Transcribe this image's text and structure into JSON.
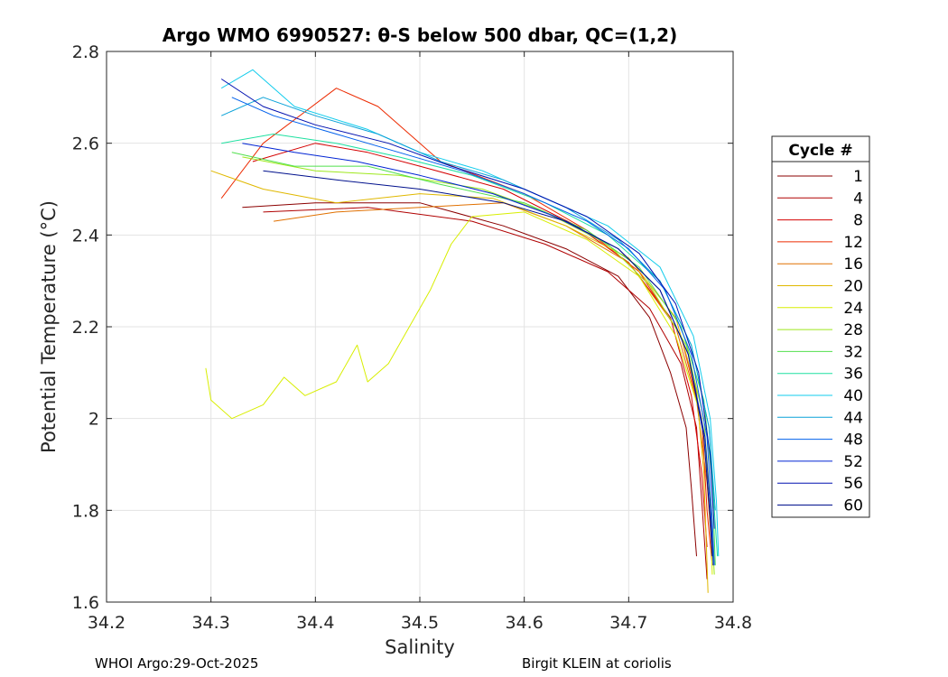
{
  "chart_data": {
    "type": "line",
    "title": "Argo WMO 6990527: θ-S below 500 dbar,  QC=(1,2)",
    "xlabel": "Salinity",
    "ylabel": "Potential Temperature (°C)",
    "xlim": [
      34.2,
      34.8
    ],
    "ylim": [
      1.6,
      2.8
    ],
    "xticks": [
      34.2,
      34.3,
      34.4,
      34.5,
      34.6,
      34.7,
      34.8
    ],
    "xtick_labels": [
      "34.2",
      "34.3",
      "34.4",
      "34.5",
      "34.6",
      "34.7",
      "34.8"
    ],
    "yticks": [
      1.6,
      1.8,
      2.0,
      2.2,
      2.4,
      2.6,
      2.8
    ],
    "ytick_labels": [
      "1.6",
      "1.8",
      "2",
      "2.2",
      "2.4",
      "2.6",
      "2.8"
    ],
    "grid": true,
    "legend": {
      "title": "Cycle #",
      "placement": "right",
      "entries": [
        {
          "label": "1",
          "color": "#8b0000"
        },
        {
          "label": "4",
          "color": "#b00000"
        },
        {
          "label": "8",
          "color": "#d40000"
        },
        {
          "label": "12",
          "color": "#ec2a00"
        },
        {
          "label": "16",
          "color": "#e07000"
        },
        {
          "label": "20",
          "color": "#e0b800"
        },
        {
          "label": "24",
          "color": "#d8ee00"
        },
        {
          "label": "28",
          "color": "#9ee81c"
        },
        {
          "label": "32",
          "color": "#52e04e"
        },
        {
          "label": "36",
          "color": "#1ee0a0"
        },
        {
          "label": "40",
          "color": "#12ccec"
        },
        {
          "label": "44",
          "color": "#0aa2d8"
        },
        {
          "label": "48",
          "color": "#0060ec"
        },
        {
          "label": "52",
          "color": "#0024d4"
        },
        {
          "label": "56",
          "color": "#0010b0"
        },
        {
          "label": "60",
          "color": "#00108c"
        }
      ]
    },
    "series": [
      {
        "name": "1",
        "color": "#8b0000",
        "points": [
          [
            34.33,
            2.46
          ],
          [
            34.4,
            2.47
          ],
          [
            34.5,
            2.47
          ],
          [
            34.58,
            2.42
          ],
          [
            34.64,
            2.37
          ],
          [
            34.69,
            2.31
          ],
          [
            34.72,
            2.22
          ],
          [
            34.74,
            2.1
          ],
          [
            34.755,
            1.98
          ],
          [
            34.76,
            1.85
          ],
          [
            34.765,
            1.7
          ]
        ]
      },
      {
        "name": "4",
        "color": "#b00000",
        "points": [
          [
            34.35,
            2.45
          ],
          [
            34.45,
            2.46
          ],
          [
            34.55,
            2.43
          ],
          [
            34.62,
            2.38
          ],
          [
            34.68,
            2.32
          ],
          [
            34.72,
            2.24
          ],
          [
            34.75,
            2.12
          ],
          [
            34.765,
            1.98
          ],
          [
            34.77,
            1.82
          ],
          [
            34.775,
            1.65
          ]
        ]
      },
      {
        "name": "8",
        "color": "#d40000",
        "points": [
          [
            34.34,
            2.56
          ],
          [
            34.4,
            2.6
          ],
          [
            34.45,
            2.58
          ],
          [
            34.5,
            2.55
          ],
          [
            34.58,
            2.5
          ],
          [
            34.65,
            2.42
          ],
          [
            34.7,
            2.34
          ],
          [
            34.74,
            2.22
          ],
          [
            34.76,
            2.05
          ],
          [
            34.77,
            1.88
          ],
          [
            34.775,
            1.72
          ]
        ]
      },
      {
        "name": "12",
        "color": "#ec2a00",
        "points": [
          [
            34.31,
            2.48
          ],
          [
            34.35,
            2.6
          ],
          [
            34.42,
            2.72
          ],
          [
            34.46,
            2.68
          ],
          [
            34.52,
            2.56
          ],
          [
            34.6,
            2.49
          ],
          [
            34.66,
            2.41
          ],
          [
            34.71,
            2.32
          ],
          [
            34.75,
            2.18
          ],
          [
            34.77,
            2.0
          ],
          [
            34.775,
            1.8
          ],
          [
            34.78,
            1.68
          ]
        ]
      },
      {
        "name": "16",
        "color": "#e07000",
        "points": [
          [
            34.36,
            2.43
          ],
          [
            34.42,
            2.45
          ],
          [
            34.5,
            2.46
          ],
          [
            34.58,
            2.47
          ],
          [
            34.64,
            2.42
          ],
          [
            34.7,
            2.34
          ],
          [
            34.745,
            2.2
          ],
          [
            34.765,
            2.04
          ],
          [
            34.775,
            1.86
          ],
          [
            34.78,
            1.7
          ]
        ]
      },
      {
        "name": "20",
        "color": "#e0b800",
        "points": [
          [
            34.3,
            2.54
          ],
          [
            34.35,
            2.5
          ],
          [
            34.42,
            2.47
          ],
          [
            34.5,
            2.49
          ],
          [
            34.57,
            2.48
          ],
          [
            34.64,
            2.42
          ],
          [
            34.7,
            2.35
          ],
          [
            34.745,
            2.22
          ],
          [
            34.765,
            2.06
          ],
          [
            34.772,
            1.88
          ],
          [
            34.776,
            1.62
          ]
        ]
      },
      {
        "name": "24",
        "color": "#d8ee00",
        "points": [
          [
            34.295,
            2.11
          ],
          [
            34.3,
            2.04
          ],
          [
            34.32,
            2.0
          ],
          [
            34.35,
            2.03
          ],
          [
            34.37,
            2.09
          ],
          [
            34.39,
            2.05
          ],
          [
            34.42,
            2.08
          ],
          [
            34.44,
            2.16
          ],
          [
            34.45,
            2.08
          ],
          [
            34.47,
            2.12
          ],
          [
            34.49,
            2.2
          ],
          [
            34.51,
            2.28
          ],
          [
            34.53,
            2.38
          ],
          [
            34.55,
            2.44
          ],
          [
            34.6,
            2.45
          ],
          [
            34.66,
            2.39
          ],
          [
            34.71,
            2.31
          ],
          [
            34.745,
            2.18
          ],
          [
            34.77,
            2.0
          ],
          [
            34.778,
            1.82
          ],
          [
            34.78,
            1.66
          ]
        ]
      },
      {
        "name": "28",
        "color": "#9ee81c",
        "points": [
          [
            34.33,
            2.57
          ],
          [
            34.4,
            2.54
          ],
          [
            34.48,
            2.53
          ],
          [
            34.56,
            2.5
          ],
          [
            34.62,
            2.45
          ],
          [
            34.68,
            2.38
          ],
          [
            34.72,
            2.29
          ],
          [
            34.755,
            2.16
          ],
          [
            34.772,
            2.0
          ],
          [
            34.778,
            1.82
          ],
          [
            34.782,
            1.66
          ]
        ]
      },
      {
        "name": "32",
        "color": "#52e04e",
        "points": [
          [
            34.32,
            2.58
          ],
          [
            34.38,
            2.55
          ],
          [
            34.45,
            2.55
          ],
          [
            34.52,
            2.51
          ],
          [
            34.6,
            2.47
          ],
          [
            34.66,
            2.41
          ],
          [
            34.71,
            2.33
          ],
          [
            34.75,
            2.2
          ],
          [
            34.772,
            2.04
          ],
          [
            34.78,
            1.86
          ],
          [
            34.783,
            1.68
          ]
        ]
      },
      {
        "name": "36",
        "color": "#1ee0a0",
        "points": [
          [
            34.31,
            2.6
          ],
          [
            34.36,
            2.62
          ],
          [
            34.42,
            2.6
          ],
          [
            34.48,
            2.57
          ],
          [
            34.55,
            2.53
          ],
          [
            34.62,
            2.47
          ],
          [
            34.68,
            2.4
          ],
          [
            34.73,
            2.3
          ],
          [
            34.76,
            2.16
          ],
          [
            34.777,
            1.98
          ],
          [
            34.782,
            1.8
          ],
          [
            34.785,
            1.7
          ]
        ]
      },
      {
        "name": "40",
        "color": "#12ccec",
        "points": [
          [
            34.31,
            2.72
          ],
          [
            34.34,
            2.76
          ],
          [
            34.38,
            2.68
          ],
          [
            34.45,
            2.63
          ],
          [
            34.5,
            2.58
          ],
          [
            34.56,
            2.54
          ],
          [
            34.62,
            2.48
          ],
          [
            34.68,
            2.42
          ],
          [
            34.73,
            2.33
          ],
          [
            34.762,
            2.18
          ],
          [
            34.778,
            2.0
          ],
          [
            34.784,
            1.82
          ],
          [
            34.786,
            1.7
          ]
        ]
      },
      {
        "name": "44",
        "color": "#0aa2d8",
        "points": [
          [
            34.31,
            2.66
          ],
          [
            34.35,
            2.7
          ],
          [
            34.4,
            2.66
          ],
          [
            34.46,
            2.62
          ],
          [
            34.52,
            2.56
          ],
          [
            34.58,
            2.52
          ],
          [
            34.64,
            2.46
          ],
          [
            34.69,
            2.39
          ],
          [
            34.73,
            2.3
          ],
          [
            34.76,
            2.16
          ],
          [
            34.777,
            1.98
          ],
          [
            34.783,
            1.8
          ]
        ]
      },
      {
        "name": "48",
        "color": "#0060ec",
        "points": [
          [
            34.32,
            2.7
          ],
          [
            34.36,
            2.66
          ],
          [
            34.42,
            2.62
          ],
          [
            34.48,
            2.58
          ],
          [
            34.54,
            2.54
          ],
          [
            34.6,
            2.49
          ],
          [
            34.66,
            2.43
          ],
          [
            34.7,
            2.37
          ],
          [
            34.735,
            2.28
          ],
          [
            34.76,
            2.14
          ],
          [
            34.775,
            1.96
          ],
          [
            34.78,
            1.78
          ],
          [
            34.782,
            1.68
          ]
        ]
      },
      {
        "name": "52",
        "color": "#0024d4",
        "points": [
          [
            34.33,
            2.6
          ],
          [
            34.38,
            2.58
          ],
          [
            34.44,
            2.56
          ],
          [
            34.5,
            2.53
          ],
          [
            34.57,
            2.49
          ],
          [
            34.63,
            2.44
          ],
          [
            34.69,
            2.37
          ],
          [
            34.73,
            2.28
          ],
          [
            34.757,
            2.14
          ],
          [
            34.773,
            1.96
          ],
          [
            34.779,
            1.78
          ],
          [
            34.781,
            1.68
          ]
        ]
      },
      {
        "name": "56",
        "color": "#0010b0",
        "points": [
          [
            34.31,
            2.74
          ],
          [
            34.35,
            2.68
          ],
          [
            34.4,
            2.64
          ],
          [
            34.47,
            2.6
          ],
          [
            34.53,
            2.55
          ],
          [
            34.6,
            2.5
          ],
          [
            34.66,
            2.44
          ],
          [
            34.71,
            2.36
          ],
          [
            34.745,
            2.25
          ],
          [
            34.767,
            2.1
          ],
          [
            34.778,
            1.92
          ],
          [
            34.782,
            1.76
          ]
        ]
      },
      {
        "name": "60",
        "color": "#00108c",
        "points": [
          [
            34.35,
            2.54
          ],
          [
            34.42,
            2.52
          ],
          [
            34.5,
            2.5
          ],
          [
            34.58,
            2.47
          ],
          [
            34.64,
            2.43
          ],
          [
            34.69,
            2.37
          ],
          [
            34.73,
            2.28
          ],
          [
            34.757,
            2.14
          ],
          [
            34.772,
            1.96
          ],
          [
            34.778,
            1.78
          ],
          [
            34.78,
            1.7
          ]
        ]
      }
    ]
  },
  "footer": {
    "left": "WHOI Argo:29-Oct-2025",
    "right": "Birgit KLEIN at coriolis"
  }
}
